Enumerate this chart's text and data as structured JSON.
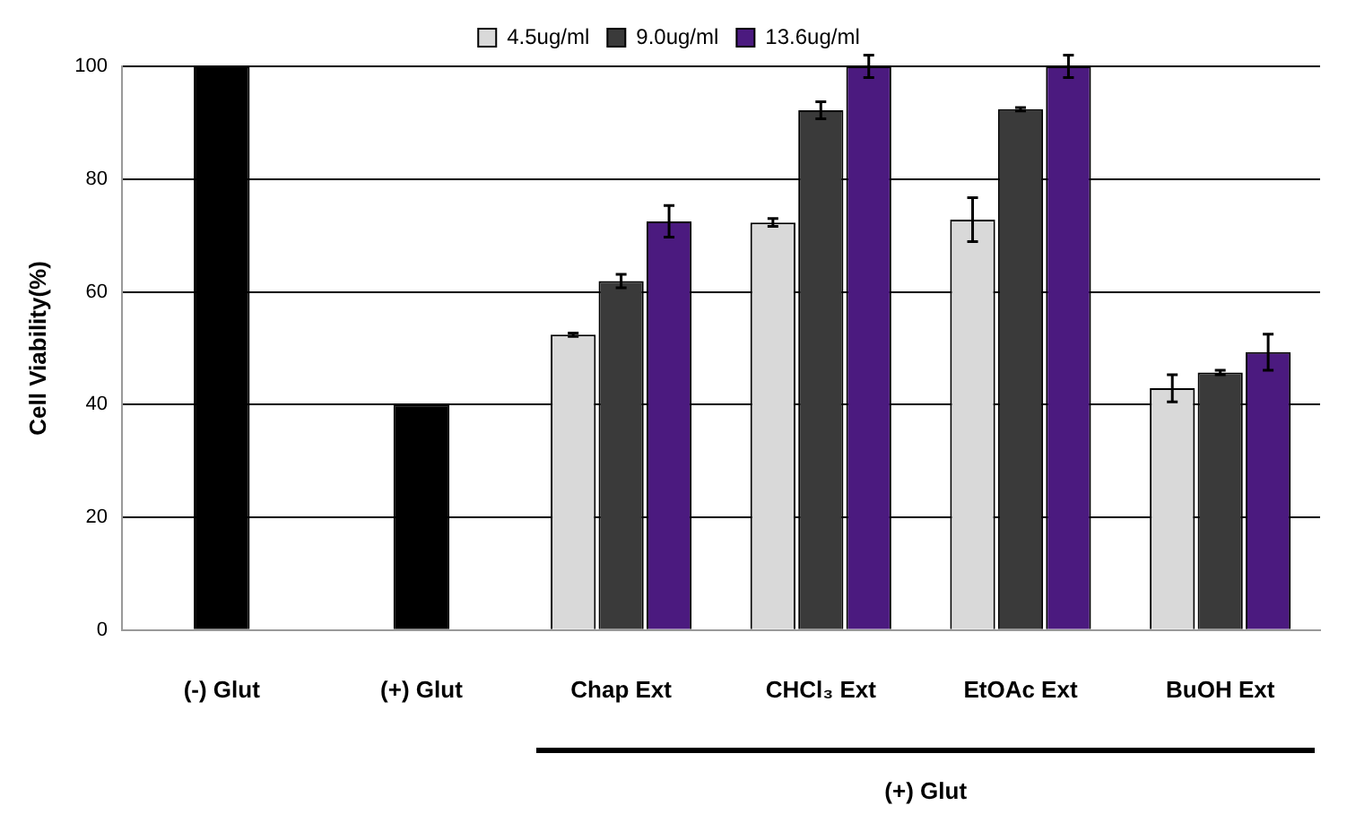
{
  "chart_data": {
    "type": "bar",
    "ylabel": "Cell Viability(%)",
    "categories": [
      "(-) Glut",
      "(+) Glut",
      "Chap Ext",
      "CHCl₃ Ext",
      "EtOAc Ext",
      "BuOH Ext"
    ],
    "series": [
      {
        "color": "#000000",
        "values": [
          100,
          40,
          null,
          null,
          null,
          null
        ]
      },
      {
        "name": "4.5ug/ml",
        "color": "#d9d9d9",
        "values": [
          null,
          null,
          52.4,
          72.3,
          72.8,
          42.9
        ],
        "errors": [
          null,
          null,
          0.3,
          0.7,
          3.9,
          2.4
        ]
      },
      {
        "name": "9.0ug/ml",
        "color": "#3a3a3a",
        "values": [
          null,
          null,
          61.9,
          92.2,
          92.4,
          45.7
        ],
        "errors": [
          null,
          null,
          1.2,
          1.5,
          0.3,
          0.4
        ]
      },
      {
        "name": "13.6ug/ml",
        "color": "#4b1a7f",
        "values": [
          null,
          null,
          72.5,
          100,
          100,
          49.3
        ],
        "errors": [
          null,
          null,
          2.8,
          2,
          2,
          3.2
        ]
      }
    ],
    "ylim": [
      0,
      100
    ],
    "yticks": [
      0,
      20,
      40,
      60,
      80,
      100
    ],
    "grid": "y",
    "legend": "top",
    "annotations": [
      "(+) Glut"
    ]
  }
}
